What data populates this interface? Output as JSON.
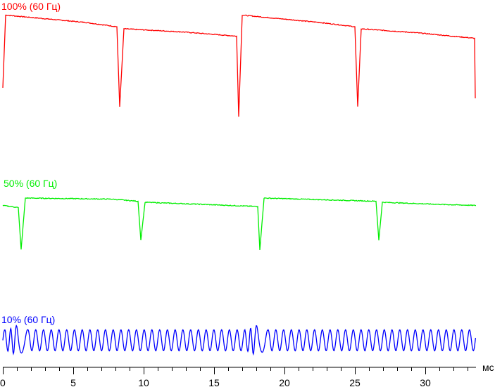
{
  "chart_data": {
    "type": "line",
    "xlabel": "мс",
    "xlim": [
      0,
      33.6
    ],
    "x_ticks": [
      "0",
      "5",
      "10",
      "15",
      "20",
      "25",
      "30"
    ],
    "x_tick_values": [
      0,
      5,
      10,
      15,
      20,
      25,
      30
    ],
    "minor_tick_step": 1,
    "grid": false,
    "series": [
      {
        "name": "100% (60 Гц)",
        "color": "#ff0000",
        "points": [
          [
            0,
            30
          ],
          [
            0.2,
            99
          ],
          [
            5.9,
            92
          ],
          [
            8.1,
            88
          ],
          [
            8.3,
            12
          ],
          [
            8.6,
            86
          ],
          [
            12.8,
            83
          ],
          [
            16.6,
            79
          ],
          [
            16.75,
            3
          ],
          [
            17.0,
            99
          ],
          [
            22.5,
            92
          ],
          [
            25.0,
            88
          ],
          [
            25.2,
            12
          ],
          [
            25.45,
            86
          ],
          [
            29.6,
            82
          ],
          [
            33.5,
            77
          ],
          [
            33.55,
            20
          ]
        ]
      },
      {
        "name": "50% (60 Гц)",
        "color": "#00ee00",
        "points": [
          [
            0,
            45
          ],
          [
            1.1,
            43
          ],
          [
            1.3,
            3
          ],
          [
            1.6,
            52
          ],
          [
            7.7,
            51
          ],
          [
            9.6,
            49
          ],
          [
            9.8,
            12
          ],
          [
            10.1,
            48
          ],
          [
            14.2,
            46
          ],
          [
            18.1,
            44
          ],
          [
            18.25,
            3
          ],
          [
            18.55,
            52
          ],
          [
            26.5,
            49
          ],
          [
            26.7,
            12
          ],
          [
            26.95,
            48
          ],
          [
            31.0,
            46
          ],
          [
            33.6,
            45
          ]
        ]
      },
      {
        "name": "10% (60 Гц)",
        "color": "#0000ff",
        "oscillation": {
          "center": 17,
          "amplitude": 10,
          "period_ms": 0.55,
          "glitches_ms": [
            1.0,
            18.0
          ]
        }
      }
    ]
  }
}
